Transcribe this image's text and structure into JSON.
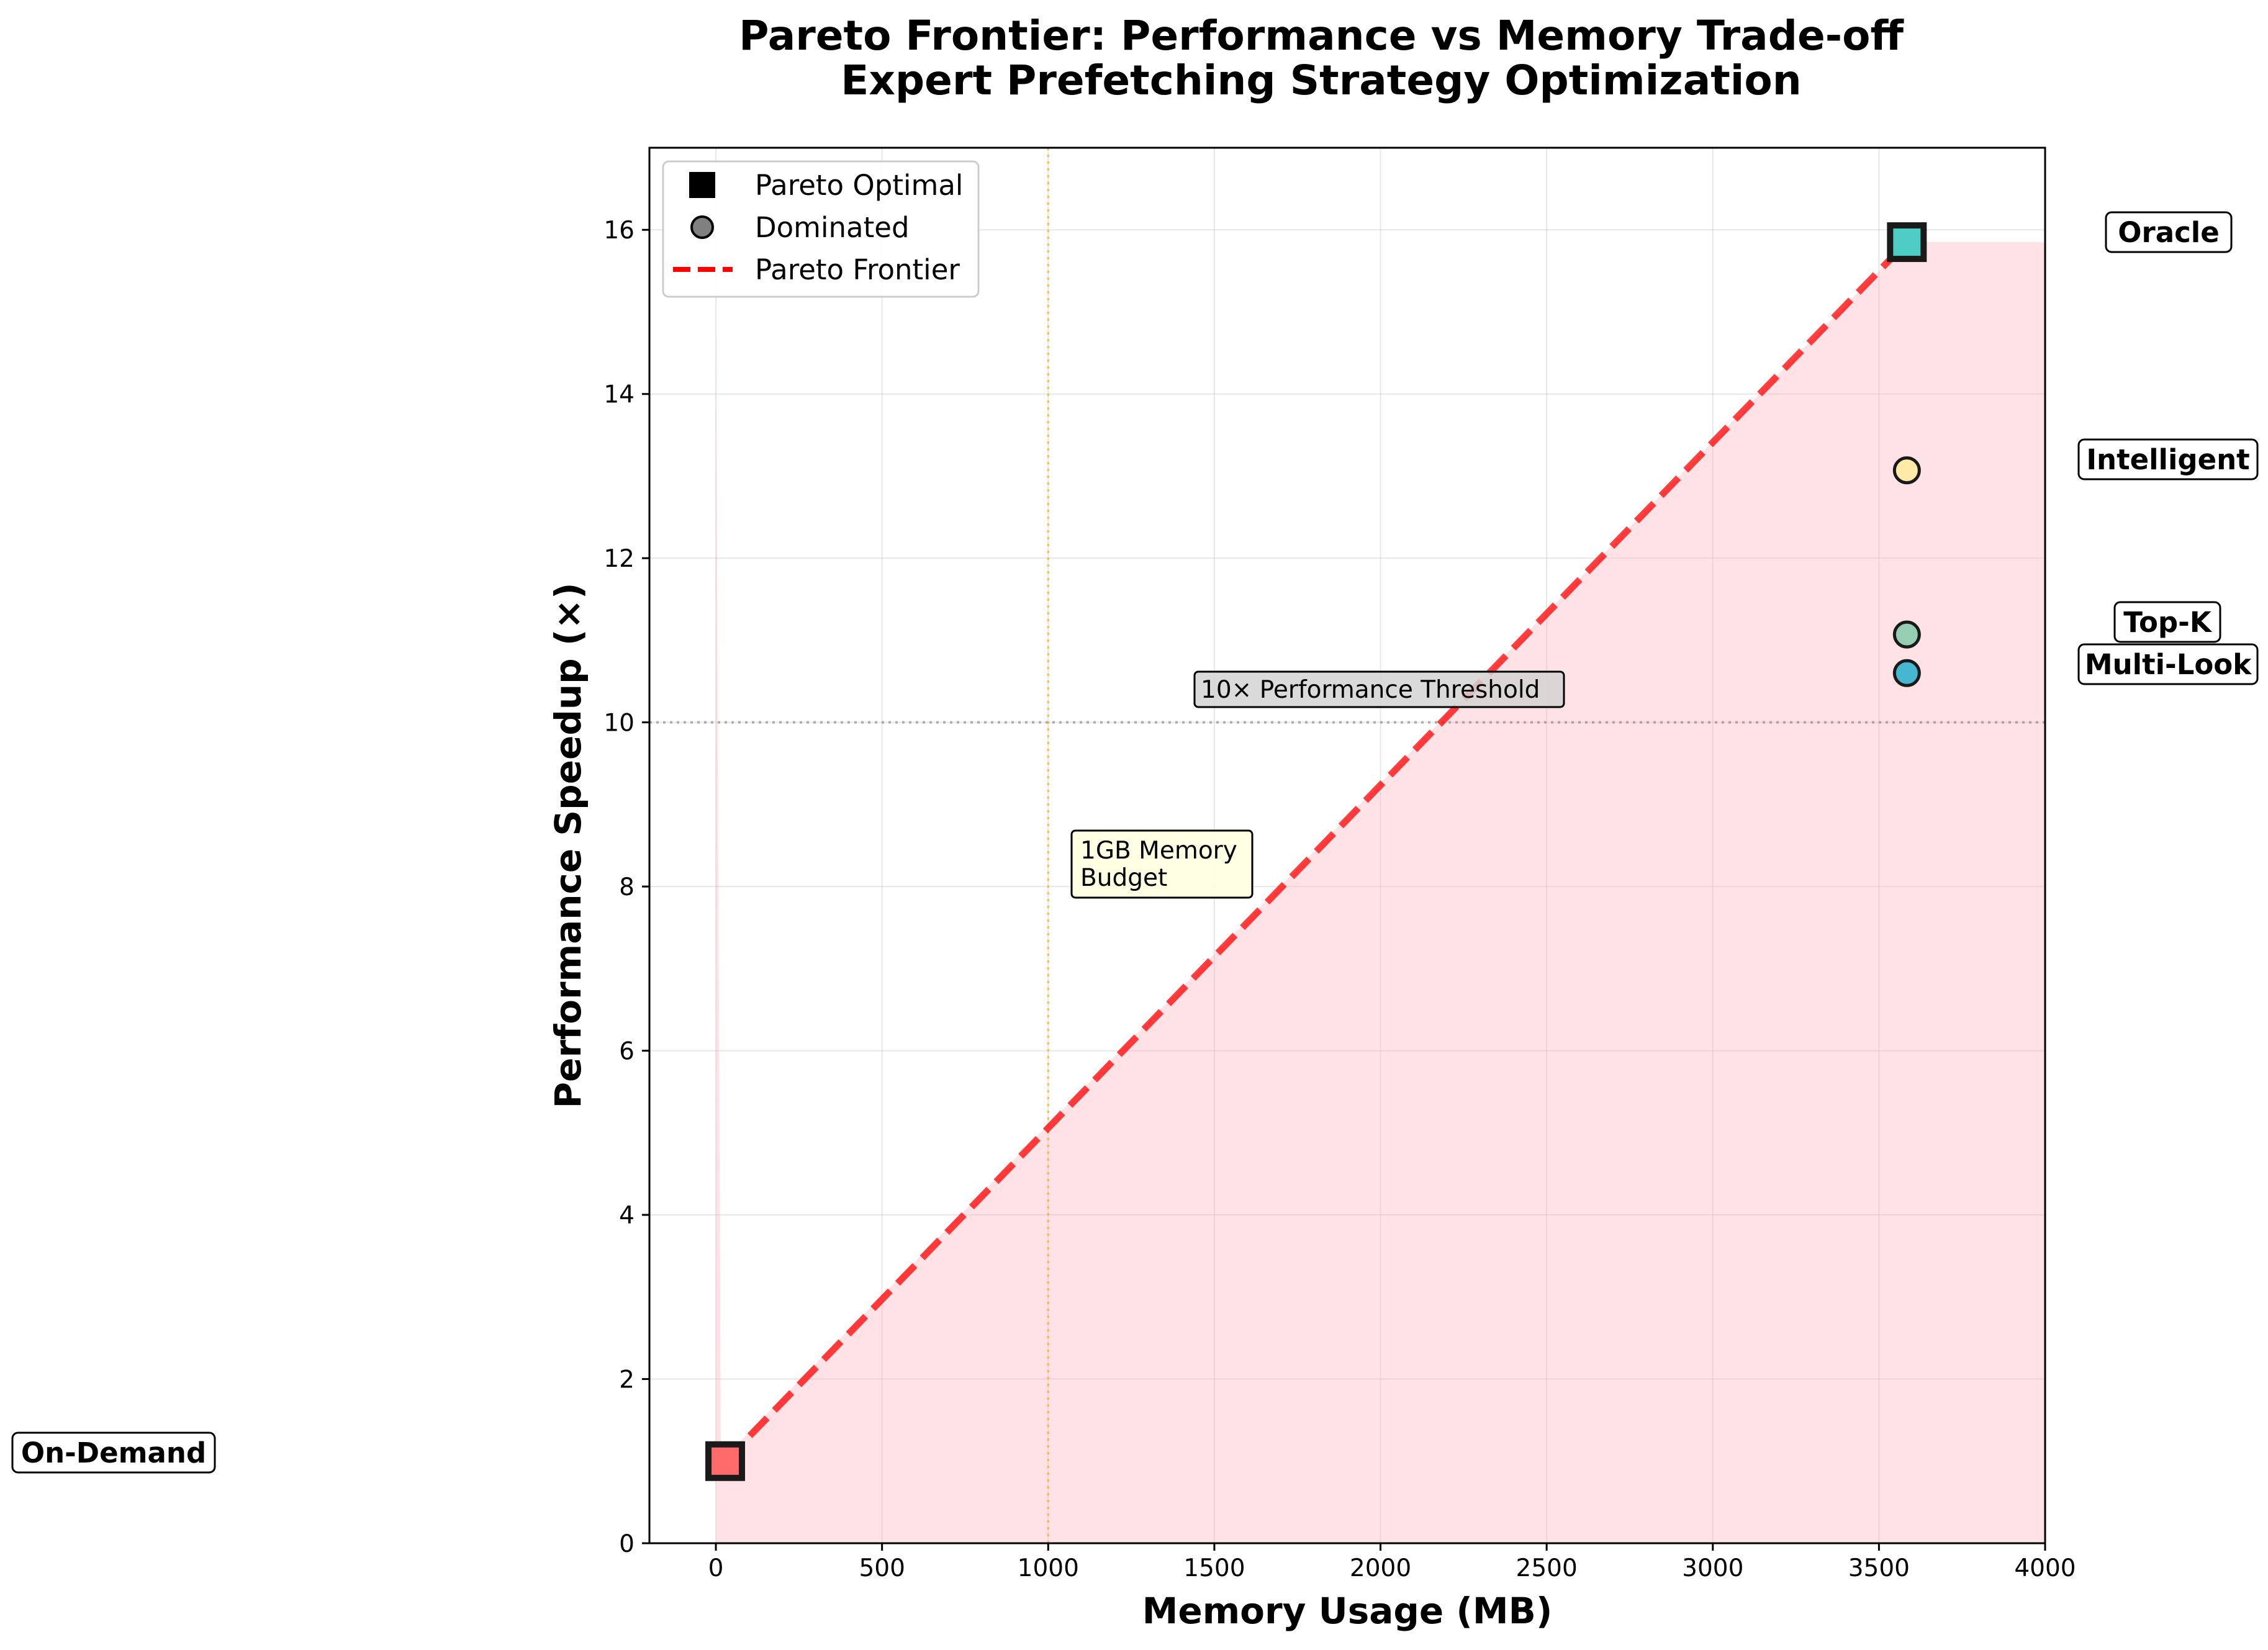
{
  "chart_data": {
    "type": "scatter",
    "title": "Pareto Frontier: Performance vs Memory Trade-off",
    "subtitle": "Expert Prefetching Strategy Optimization",
    "xlabel": "Memory Usage (MB)",
    "ylabel": "Performance Speedup (×)",
    "xlim": [
      -200,
      4000
    ],
    "ylim": [
      0,
      17
    ],
    "xticks": [
      0,
      500,
      1000,
      1500,
      2000,
      2500,
      3000,
      3500,
      4000
    ],
    "yticks": [
      0,
      2,
      4,
      6,
      8,
      10,
      12,
      14,
      16
    ],
    "grid": true,
    "legend": {
      "placement": "upper-left",
      "entries": [
        {
          "label": "Pareto Optimal",
          "marker": "square",
          "color": "#000000"
        },
        {
          "label": "Dominated",
          "marker": "circle",
          "color": "#808080"
        },
        {
          "label": "Pareto Frontier",
          "marker": "dashed-line",
          "color": "#ff0000"
        }
      ]
    },
    "points": [
      {
        "name": "On-Demand",
        "x": 28,
        "y": 1.0,
        "pareto": true,
        "color": "#ff6b6b"
      },
      {
        "name": "Oracle",
        "x": 3584,
        "y": 15.85,
        "pareto": true,
        "color": "#4ecdc4"
      },
      {
        "name": "Intelligent",
        "x": 3584,
        "y": 13.07,
        "pareto": false,
        "color": "#ffeaa7"
      },
      {
        "name": "Top-K",
        "x": 3584,
        "y": 11.07,
        "pareto": false,
        "color": "#96ceb4"
      },
      {
        "name": "Multi-Look",
        "x": 3584,
        "y": 10.6,
        "pareto": false,
        "color": "#45b7d1"
      }
    ],
    "frontier": {
      "x": [
        28,
        3584
      ],
      "y": [
        1.0,
        15.85
      ],
      "color": "#ff0000"
    },
    "threshold": {
      "y": 10,
      "label": "10× Performance Threshold"
    },
    "budget": {
      "x": 1000,
      "label_line1": "1GB Memory",
      "label_line2": "Budget"
    }
  }
}
